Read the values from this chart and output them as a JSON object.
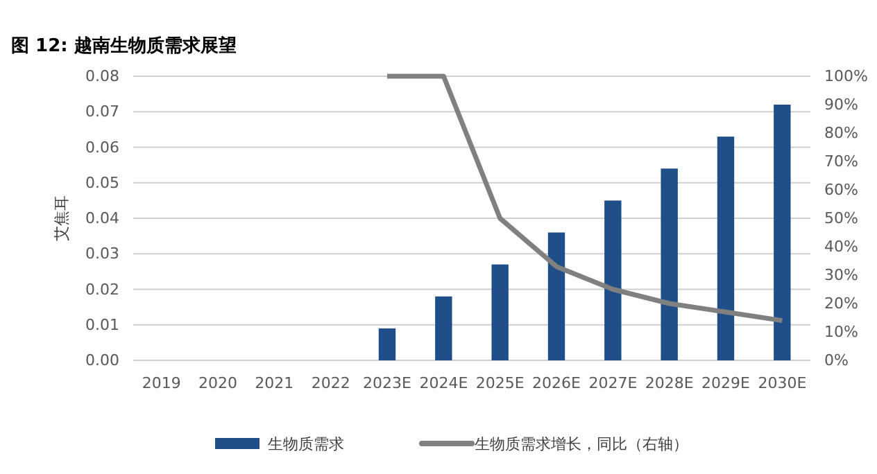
{
  "chart_data": {
    "type": "bar",
    "title": "图 12:  越南生物质需求展望",
    "ylabel": "艾焦耳",
    "categories": [
      "2019",
      "2020",
      "2021",
      "2022",
      "2023E",
      "2024E",
      "2025E",
      "2026E",
      "2027E",
      "2028E",
      "2029E",
      "2030E"
    ],
    "series": [
      {
        "name": "生物质需求",
        "color": "#1f4e89",
        "values": [
          null,
          null,
          null,
          null,
          0.009,
          0.018,
          0.027,
          0.036,
          0.045,
          0.054,
          0.063,
          0.072
        ]
      },
      {
        "name": "生物质需求增长，同比（右轴）",
        "type": "line",
        "axis": "y2",
        "color": "#808080",
        "values": [
          null,
          null,
          null,
          null,
          100,
          100,
          50,
          33,
          25,
          20,
          17,
          14
        ]
      }
    ],
    "ylim": [
      0,
      0.08
    ],
    "yticks": [
      {
        "value": 0,
        "label": "0.00"
      },
      {
        "value": 0.01,
        "label": "0.01"
      },
      {
        "value": 0.02,
        "label": "0.02"
      },
      {
        "value": 0.03,
        "label": "0.03"
      },
      {
        "value": 0.04,
        "label": "0.04"
      },
      {
        "value": 0.05,
        "label": "0.05"
      },
      {
        "value": 0.06,
        "label": "0.06"
      },
      {
        "value": 0.07,
        "label": "0.07"
      },
      {
        "value": 0.08,
        "label": "0.08"
      }
    ],
    "y2lim": [
      0,
      100
    ],
    "y2ticks": [
      {
        "value": 0,
        "label": "0%"
      },
      {
        "value": 10,
        "label": "10%"
      },
      {
        "value": 20,
        "label": "20%"
      },
      {
        "value": 30,
        "label": "30%"
      },
      {
        "value": 40,
        "label": "40%"
      },
      {
        "value": 50,
        "label": "50%"
      },
      {
        "value": 60,
        "label": "60%"
      },
      {
        "value": 70,
        "label": "70%"
      },
      {
        "value": 80,
        "label": "80%"
      },
      {
        "value": 90,
        "label": "90%"
      },
      {
        "value": 100,
        "label": "100%"
      }
    ],
    "grid": "y",
    "legend": "bottom",
    "marker": "none",
    "line_style": "solid"
  }
}
